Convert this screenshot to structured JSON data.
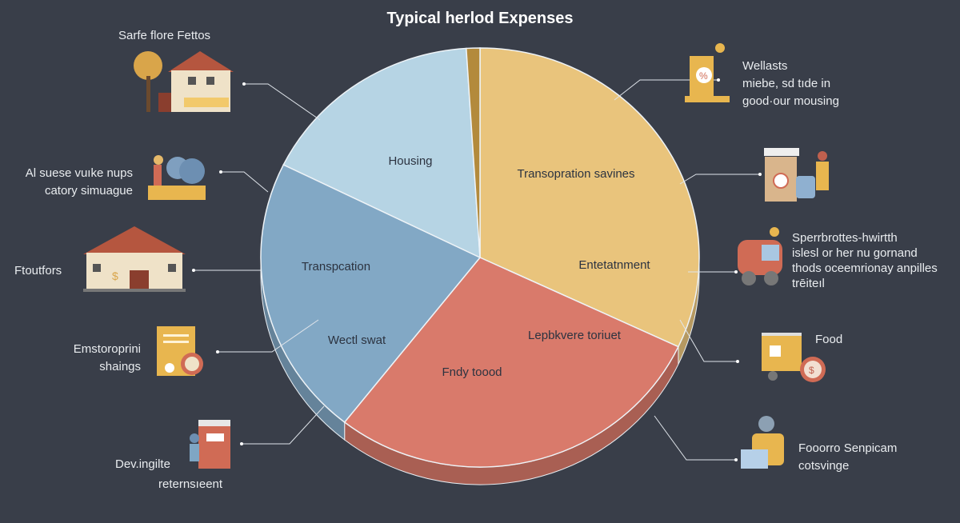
{
  "title": "Typical herlod Expenses",
  "chart_data": {
    "type": "pie",
    "title": "Typical herlod Expenses",
    "slices": [
      {
        "labels": [
          "Transopration savines",
          "Entetatnment"
        ],
        "value": 32,
        "color": "#e9c47c"
      },
      {
        "labels": [
          "Lepbkvere toriuet",
          "Fndy toood"
        ],
        "value": 28.6,
        "color": "#d97a6b"
      },
      {
        "labels": [
          "Transpcation",
          "Wectl swat"
        ],
        "value": 21.7,
        "color": "#82a8c5"
      },
      {
        "labels": [
          "Housing"
        ],
        "value": 16.7,
        "color": "#b6d4e4"
      },
      {
        "labels": [],
        "value": 1.0,
        "color": "#b38a3c"
      }
    ]
  },
  "callouts_left": [
    {
      "text": "Sarfe flore Fettos",
      "icon": "house-tree-icon"
    },
    {
      "text": "Al suese vuıke nups\ncatory simuague",
      "icon": "gardener-icon"
    },
    {
      "text": "Ftoutfors",
      "icon": "bank-house-icon"
    },
    {
      "text": "Emstoroprini\nshaings",
      "icon": "bill-icon"
    },
    {
      "text": "Dev.ingilte",
      "text2": "reternsıeent",
      "icon": "worker-booth-icon"
    }
  ],
  "callouts_right": [
    {
      "text": "Wellasts\nmiebe, sd tıde in\ngood·our mousing",
      "icon": "percent-sign-icon"
    },
    {
      "text": "",
      "icon": "coffee-shopping-icon"
    },
    {
      "text": "Sperrbrottes-hwirtth\nislesl or her nu gornand\nthods oceemrionay anpilles\ntrēiteıl",
      "icon": "car-icon"
    },
    {
      "text": "Food",
      "icon": "food-truck-icon"
    },
    {
      "text": "Fooorro Senpicam\ncotsvinge",
      "icon": "person-laptop-icon"
    }
  ]
}
